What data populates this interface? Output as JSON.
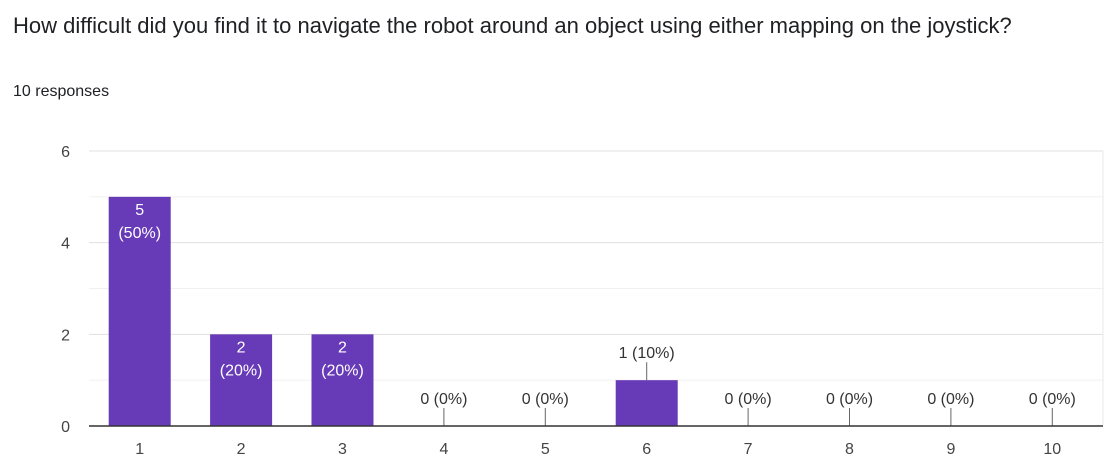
{
  "question": "How difficult did you find it to navigate the robot around an object using either mapping on the joystick?",
  "responses": "10 responses",
  "colors": {
    "bar": "#673ab7",
    "grid": "#e8e8e8",
    "axis": "#333333",
    "text": "#444444",
    "bar_text": "#ffffff"
  },
  "chart_data": {
    "type": "bar",
    "categories": [
      "1",
      "2",
      "3",
      "4",
      "5",
      "6",
      "7",
      "8",
      "9",
      "10"
    ],
    "values": [
      5,
      2,
      2,
      0,
      0,
      1,
      0,
      0,
      0,
      0
    ],
    "percentages": [
      "50%",
      "20%",
      "20%",
      "0%",
      "0%",
      "10%",
      "0%",
      "0%",
      "0%",
      "0%"
    ],
    "data_labels": [
      "5 (50%)",
      "2 (20%)",
      "2 (20%)",
      "0 (0%)",
      "0 (0%)",
      "1 (10%)",
      "0 (0%)",
      "0 (0%)",
      "0 (0%)",
      "0 (0%)"
    ],
    "title": "",
    "xlabel": "",
    "ylabel": "",
    "ylim": [
      0,
      6
    ],
    "yticks": [
      0,
      2,
      4,
      6
    ],
    "grid": true
  }
}
